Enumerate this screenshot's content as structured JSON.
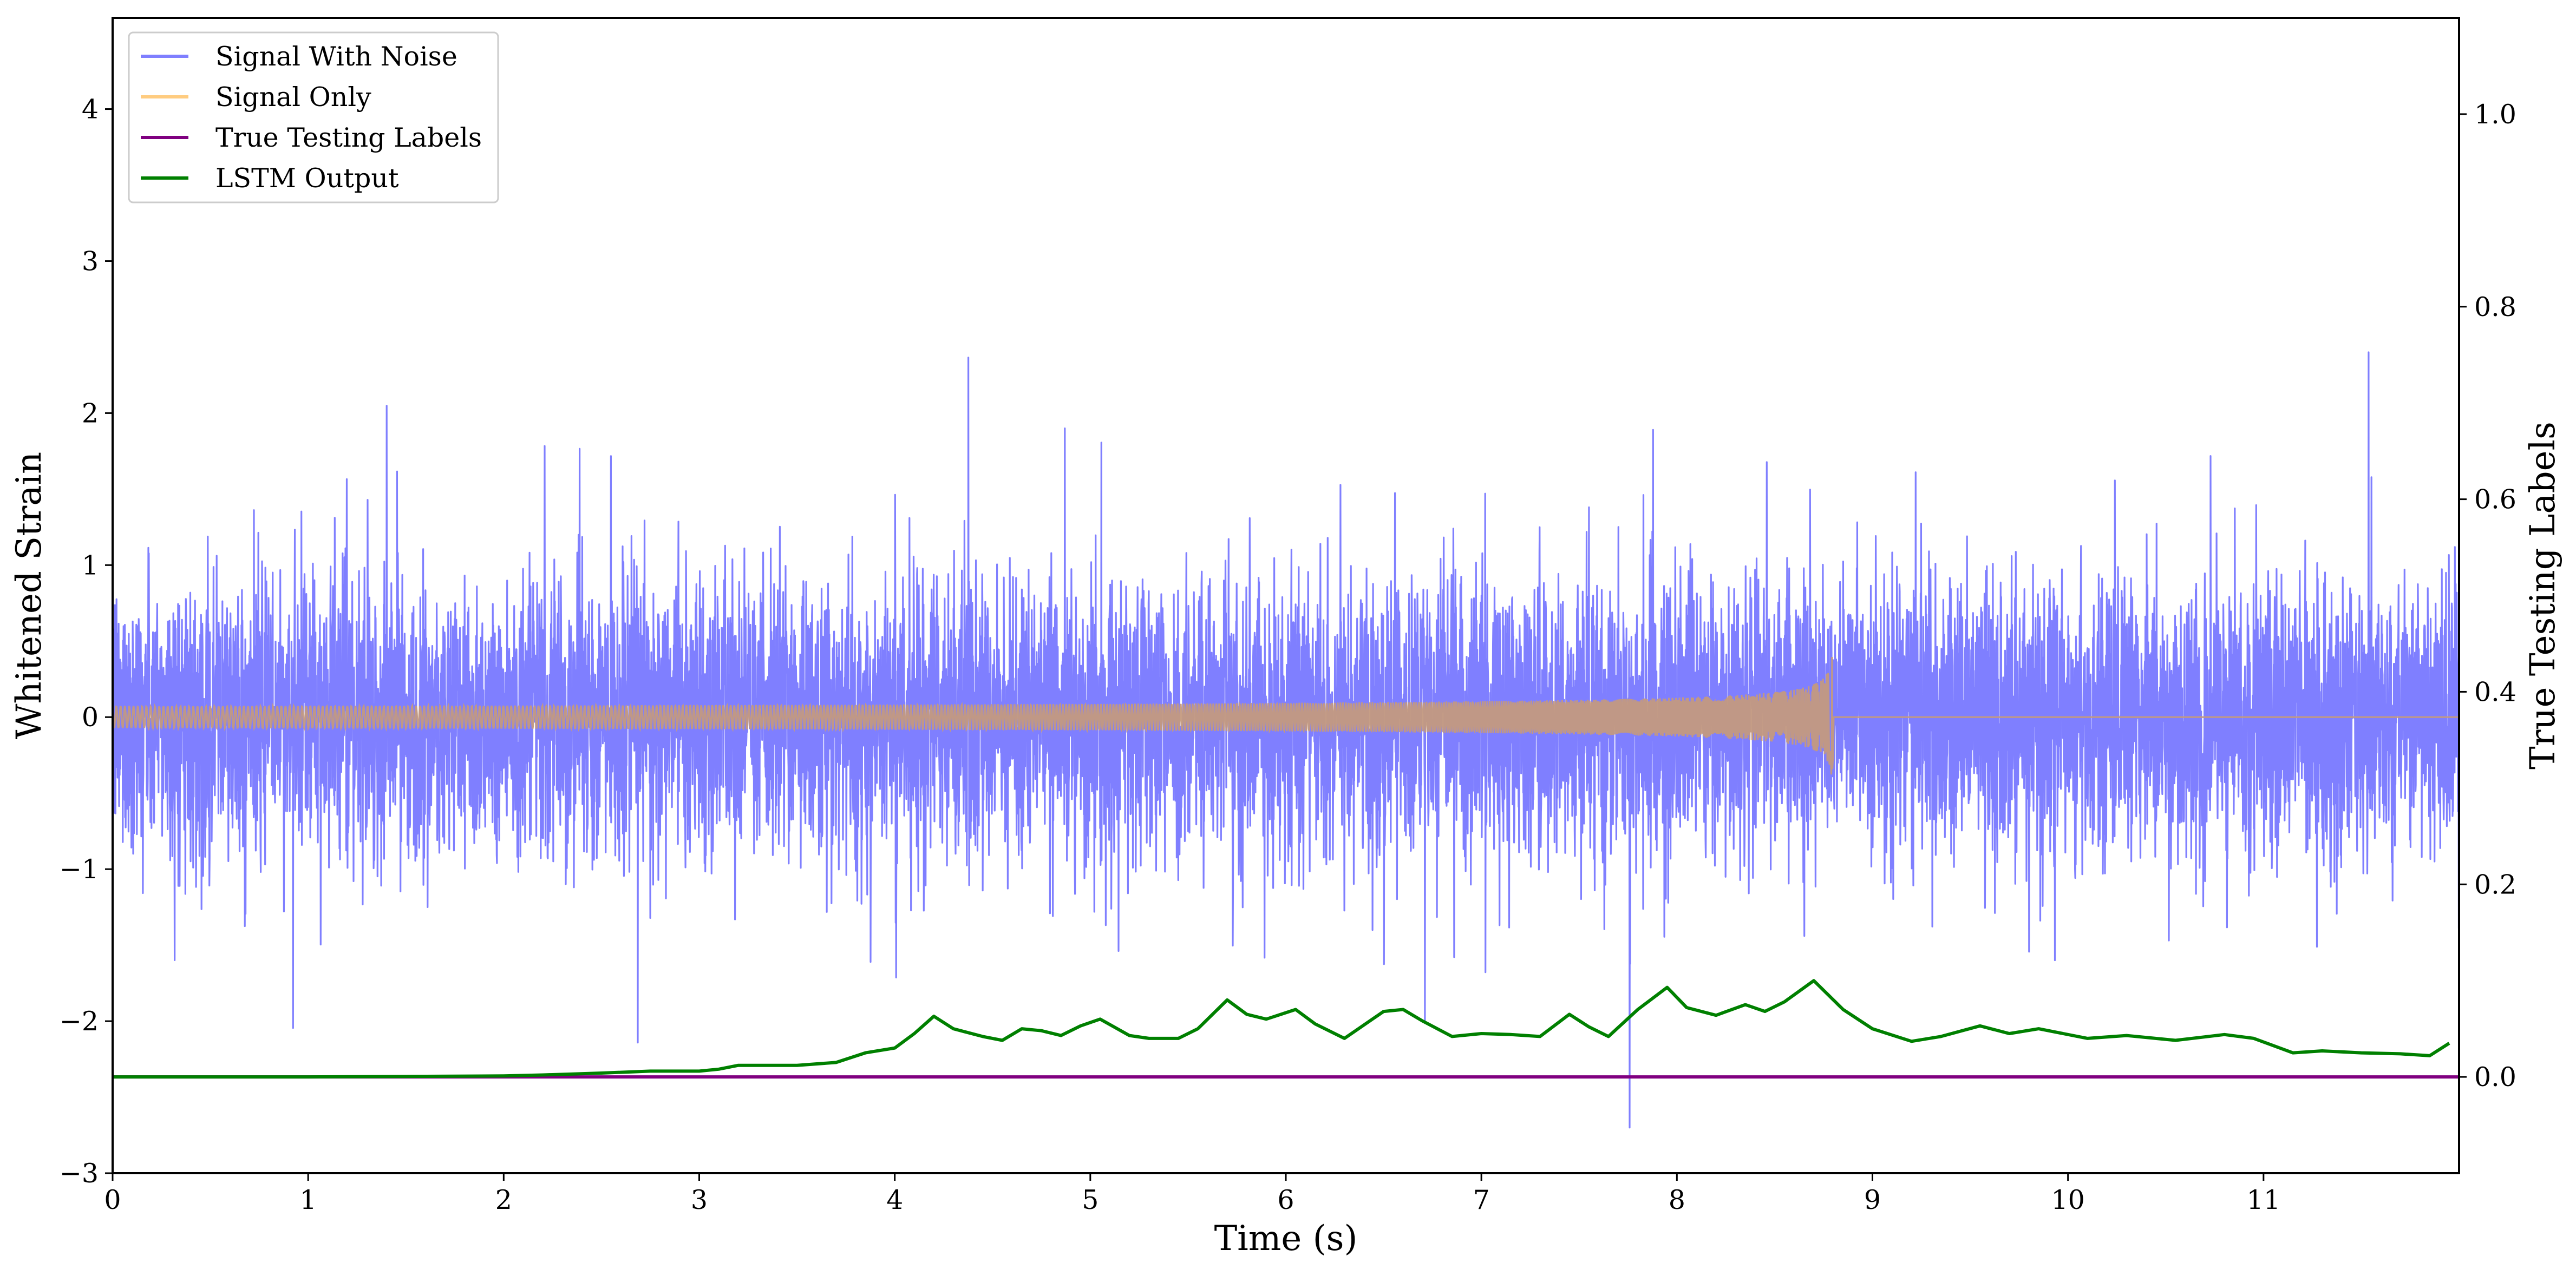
{
  "chart_data": {
    "type": "line",
    "xlabel": "Time (s)",
    "ylabel": "Whitened Strain",
    "ylabel_right": "True Testing Labels",
    "xlim": [
      0,
      12
    ],
    "ylim": [
      -3.0,
      4.6
    ],
    "ylim_right": [
      -0.1,
      1.1
    ],
    "x_ticks": [
      0,
      1,
      2,
      3,
      4,
      5,
      6,
      7,
      8,
      9,
      10,
      11
    ],
    "y_ticks": [
      -3,
      -2,
      -1,
      0,
      1,
      2,
      3,
      4
    ],
    "y_tick_labels": [
      "−3",
      "−2",
      "−1",
      "0",
      "1",
      "2",
      "3",
      "4"
    ],
    "y_ticks_right": [
      0.0,
      0.2,
      0.4,
      0.6,
      0.8,
      1.0
    ],
    "y_tick_labels_right": [
      "0.0",
      "0.2",
      "0.4",
      "0.6",
      "0.8",
      "1.0"
    ],
    "grid": false,
    "legend_placement": "upper-left",
    "series": [
      {
        "name": "Signal With Noise",
        "color": "#7f7fff",
        "axis": "left",
        "kind": "noise",
        "approx_std": 0.45,
        "min": -2.7,
        "max": 2.4
      },
      {
        "name": "Signal Only",
        "color": "#ffcc80",
        "axis": "left",
        "kind": "chirp",
        "merger_time": 8.8,
        "peak_amplitude": 0.52
      },
      {
        "name": "True Testing Labels",
        "color": "#800080",
        "axis": "right",
        "x": [
          0,
          12
        ],
        "values": [
          0.0,
          0.0
        ]
      },
      {
        "name": "LSTM Output",
        "color": "#008000",
        "axis": "right",
        "x": [
          0,
          1,
          1.5,
          2.0,
          2.2,
          2.5,
          2.75,
          3.0,
          3.1,
          3.2,
          3.5,
          3.7,
          3.85,
          4.0,
          4.1,
          4.2,
          4.3,
          4.45,
          4.55,
          4.65,
          4.75,
          4.85,
          4.95,
          5.05,
          5.2,
          5.3,
          5.45,
          5.55,
          5.7,
          5.8,
          5.9,
          6.05,
          6.15,
          6.3,
          6.5,
          6.6,
          6.7,
          6.85,
          7.0,
          7.15,
          7.3,
          7.45,
          7.55,
          7.65,
          7.8,
          7.95,
          8.05,
          8.2,
          8.35,
          8.45,
          8.55,
          8.7,
          8.85,
          9.0,
          9.2,
          9.35,
          9.55,
          9.7,
          9.85,
          10.1,
          10.3,
          10.55,
          10.8,
          10.95,
          11.15,
          11.3,
          11.5,
          11.7,
          11.85,
          11.95
        ],
        "values": [
          0.0,
          0.0,
          0.0005,
          0.001,
          0.002,
          0.004,
          0.006,
          0.006,
          0.008,
          0.012,
          0.012,
          0.015,
          0.025,
          0.03,
          0.045,
          0.063,
          0.05,
          0.042,
          0.038,
          0.05,
          0.048,
          0.043,
          0.053,
          0.06,
          0.043,
          0.04,
          0.04,
          0.05,
          0.08,
          0.065,
          0.06,
          0.07,
          0.055,
          0.04,
          0.068,
          0.07,
          0.058,
          0.042,
          0.045,
          0.044,
          0.042,
          0.065,
          0.052,
          0.042,
          0.07,
          0.093,
          0.072,
          0.064,
          0.075,
          0.068,
          0.078,
          0.1,
          0.07,
          0.05,
          0.037,
          0.042,
          0.053,
          0.045,
          0.05,
          0.04,
          0.043,
          0.038,
          0.044,
          0.04,
          0.025,
          0.027,
          0.025,
          0.024,
          0.022,
          0.035
        ]
      }
    ]
  }
}
